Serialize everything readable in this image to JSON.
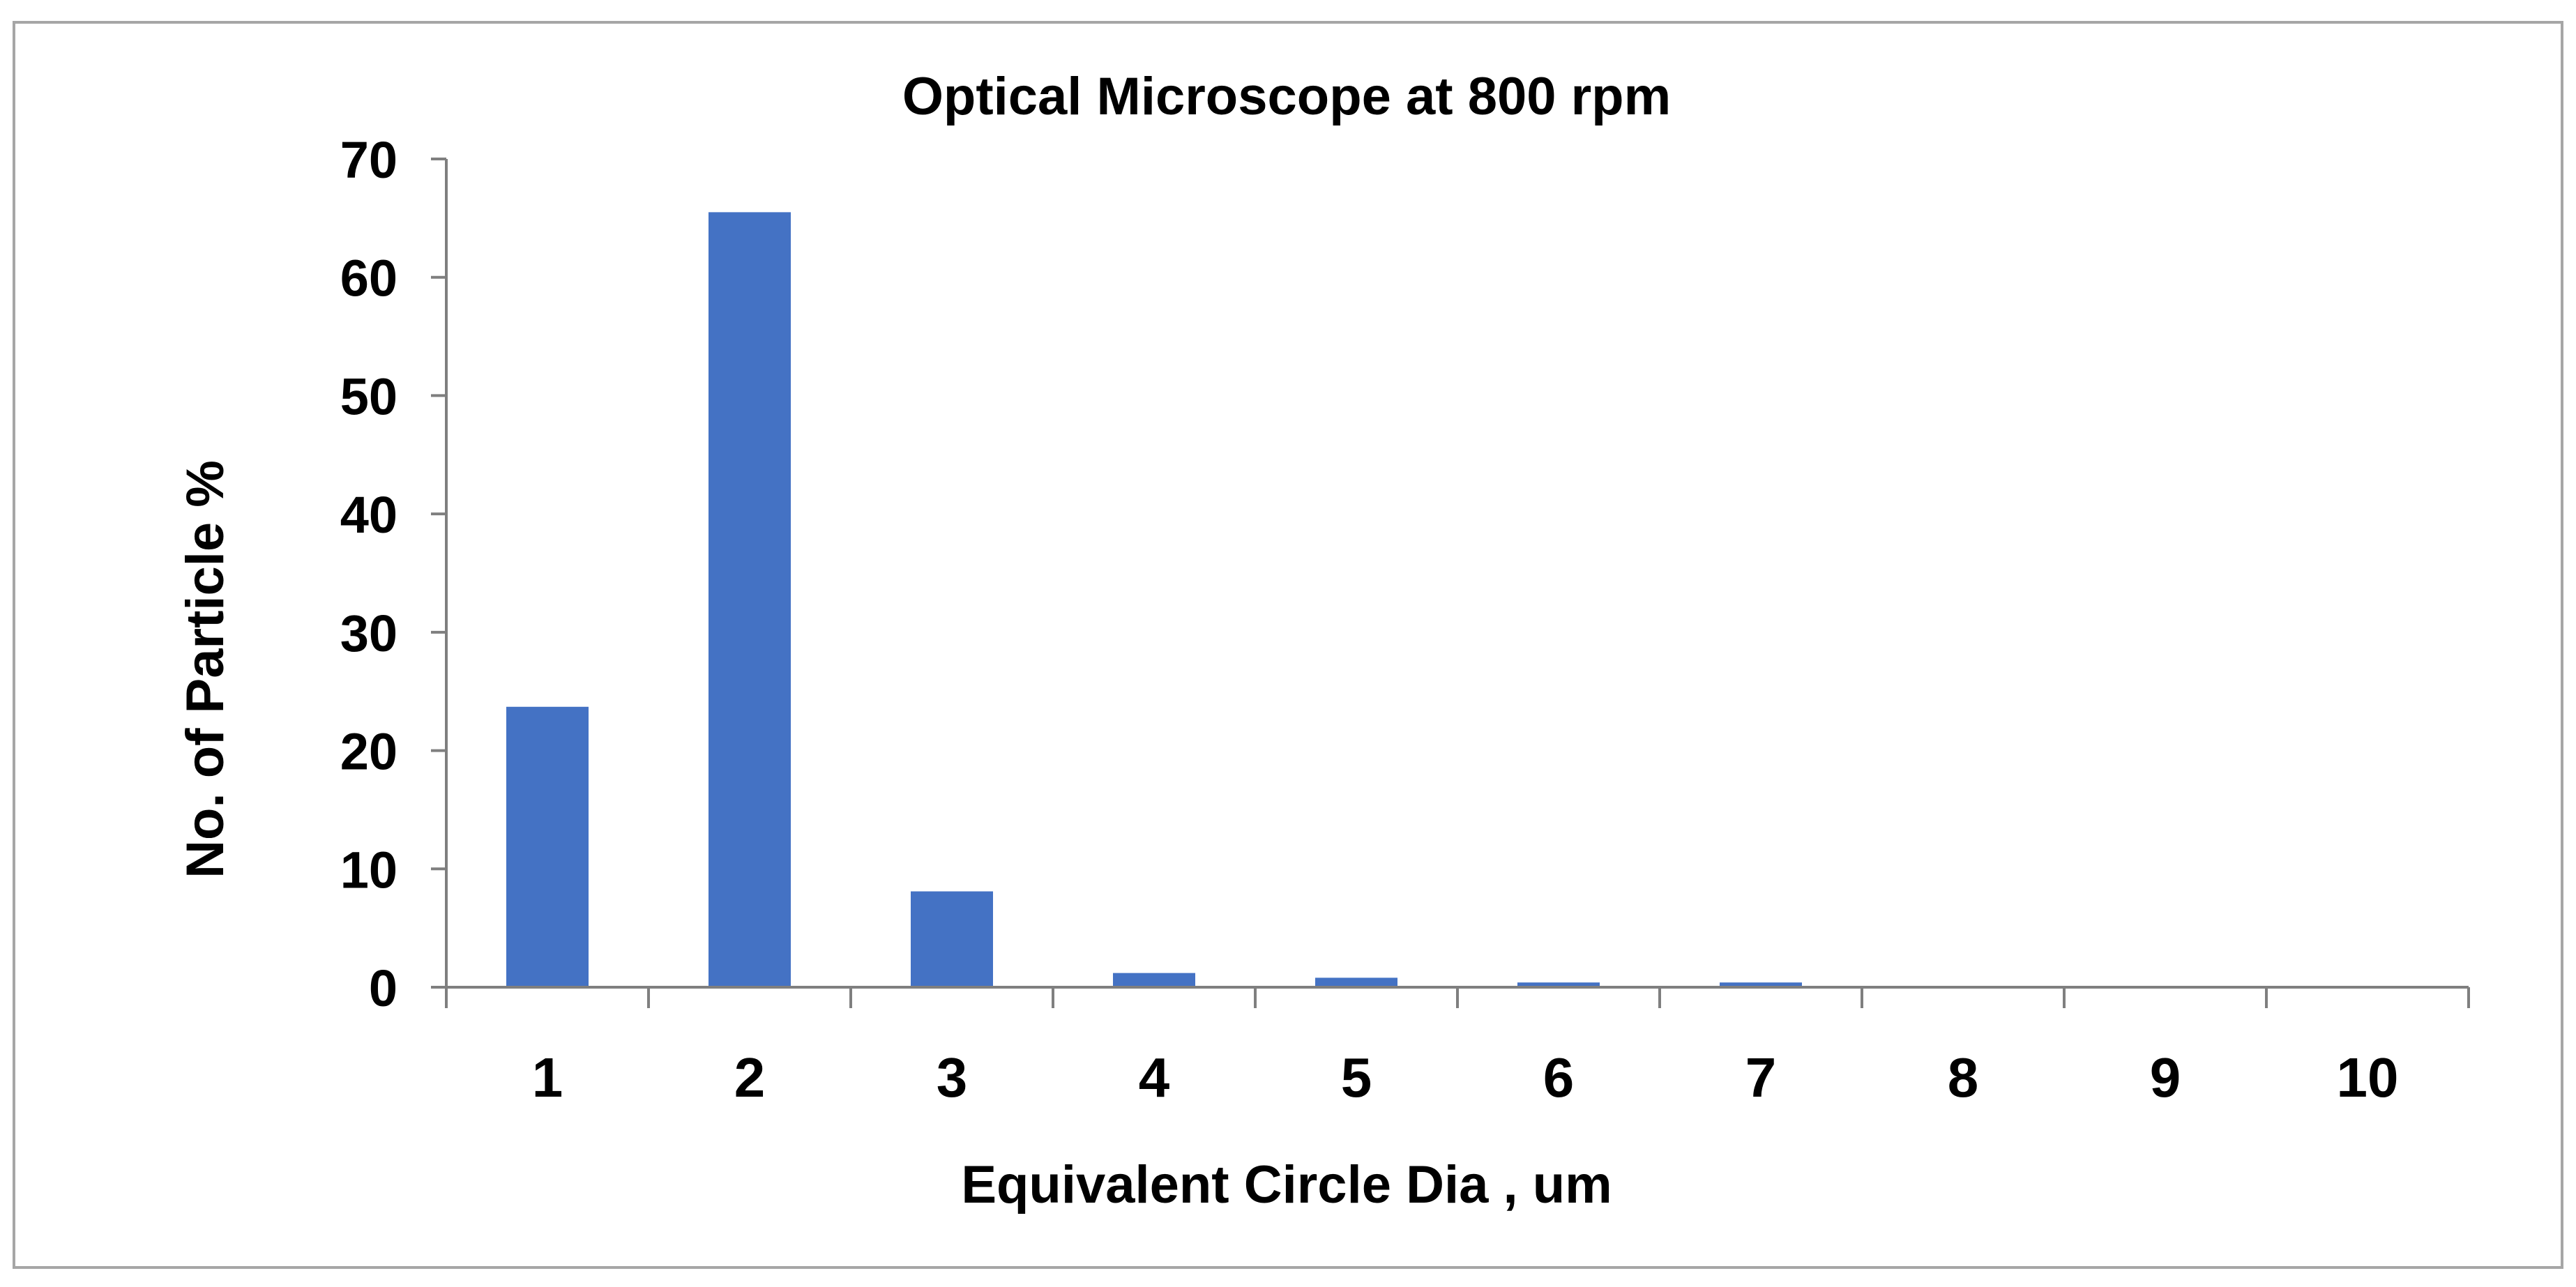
{
  "chart_data": {
    "type": "bar",
    "title": "Optical Microscope at 800 rpm",
    "xlabel": "Equivalent Circle Dia , um",
    "ylabel": "No. of Particle %",
    "categories": [
      "1",
      "2",
      "3",
      "4",
      "5",
      "6",
      "7",
      "8",
      "9",
      "10"
    ],
    "values": [
      23.7,
      65.5,
      8.1,
      1.2,
      0.8,
      0.4,
      0.4,
      0,
      0,
      0
    ],
    "ylim": [
      0,
      70
    ],
    "yticks": [
      "0",
      "10",
      "20",
      "30",
      "40",
      "50",
      "60",
      "70"
    ],
    "grid": false,
    "legend": "none",
    "bar_color": "#4472C4",
    "axis_color": "#7F7F7F",
    "border_color": "#A6A6A6"
  }
}
